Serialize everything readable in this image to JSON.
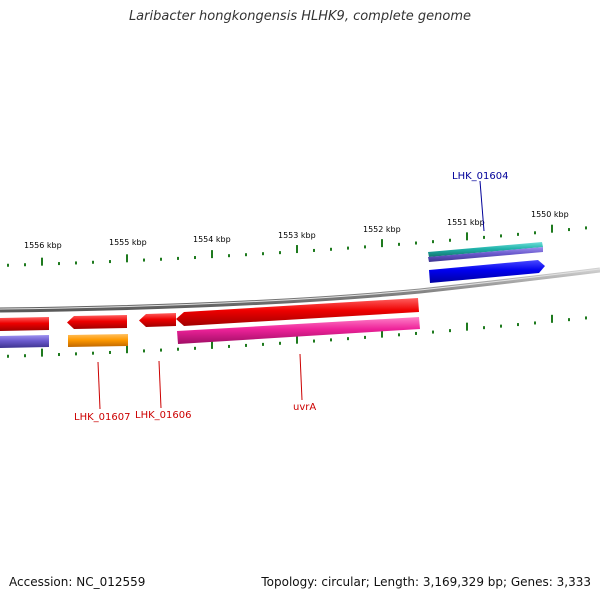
{
  "title": "Laribacter hongkongensis HLHK9, complete genome",
  "footer": {
    "accession": "Accession: NC_012559",
    "info": "Topology: circular; Length: 3,169,329 bp; Genes: 3,333"
  },
  "ruler": {
    "tick_color": "#1e7a1e",
    "labels": [
      "1556 kbp",
      "1555 kbp",
      "1554 kbp",
      "1553 kbp",
      "1552 kbp",
      "1551 kbp",
      "1550 kbp"
    ]
  },
  "gene_labels": [
    {
      "name": "LHK_01604",
      "color": "#000099"
    },
    {
      "name": "LHK_01607",
      "color": "#cc0000"
    },
    {
      "name": "LHK_01606",
      "color": "#cc0000"
    },
    {
      "name": "uvrA",
      "color": "#cc0000"
    }
  ],
  "colors": {
    "backbone": "#8a8a8a",
    "cds_forward": "#0000ee",
    "cds_reverse": "#ee0000",
    "gene_purple": "#6a5acd",
    "gene_orange": "#ff9900",
    "gene_magenta": "#ee2299",
    "gene_teal": "#20b2aa"
  }
}
